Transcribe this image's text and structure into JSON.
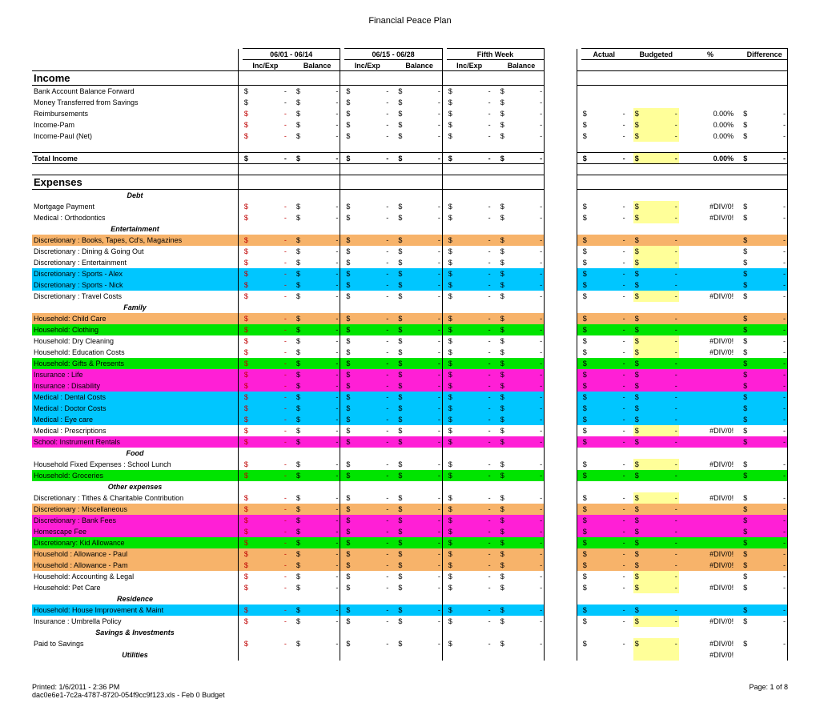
{
  "title": "Financial Peace Plan",
  "periods": [
    {
      "range": "06/01 - 06/14",
      "col1": "Inc/Exp",
      "col2": "Balance"
    },
    {
      "range": "06/15 - 06/28",
      "col1": "Inc/Exp",
      "col2": "Balance"
    },
    {
      "range": "Fifth Week",
      "col1": "Inc/Exp",
      "col2": "Balance"
    }
  ],
  "summary_headers": [
    "Actual",
    "Budgeted",
    "%",
    "Difference"
  ],
  "colors": {
    "orange": "#f7b36a",
    "cyan": "#00c6ff",
    "green": "#00e400",
    "magenta": "#ff1fd6",
    "yellow": "#ffff99",
    "white": "#ffffff"
  },
  "income": {
    "title": "Income",
    "rows": [
      {
        "label": "Bank Account Balance Forward",
        "bg": "white",
        "summary": false
      },
      {
        "label": "Money Transferred from Savings",
        "bg": "white",
        "summary": false
      },
      {
        "label": "Reimbursements",
        "bg": "white",
        "summary": true,
        "pct": "0.00%"
      },
      {
        "label": "Income-Pam",
        "bg": "white",
        "summary": true,
        "pct": "0.00%"
      },
      {
        "label": "Income-Paul (Net)",
        "bg": "white",
        "summary": true,
        "pct": "0.00%"
      }
    ],
    "total_label": "Total Income",
    "total_pct": "0.00%"
  },
  "expenses": {
    "title": "Expenses",
    "groups": [
      {
        "title": "Debt",
        "rows": [
          {
            "label": "Mortgage Payment",
            "bg": "white",
            "diverr": true
          },
          {
            "label": "Medical : Orthodontics",
            "bg": "white",
            "diverr": true
          }
        ]
      },
      {
        "title": "Entertainment",
        "rows": [
          {
            "label": "Discretionary : Books, Tapes, Cd's, Magazines",
            "bg": "orange"
          },
          {
            "label": "Discretionary : Dining & Going Out",
            "bg": "white"
          },
          {
            "label": "Discretionary : Entertainment",
            "bg": "white"
          },
          {
            "label": "Discretionary : Sports - Alex",
            "bg": "cyan"
          },
          {
            "label": "Discretionary : Sports - Nick",
            "bg": "cyan"
          },
          {
            "label": "Discretionary : Travel Costs",
            "bg": "white",
            "diverr": true
          }
        ]
      },
      {
        "title": "Family",
        "rows": [
          {
            "label": "Household: Child Care",
            "bg": "orange"
          },
          {
            "label": "Household: Clothing",
            "bg": "green"
          },
          {
            "label": "Household: Dry Cleaning",
            "bg": "white",
            "diverr": true
          },
          {
            "label": "Household: Education Costs",
            "bg": "white",
            "diverr": true
          },
          {
            "label": "Household: Gifts & Presents",
            "bg": "green"
          },
          {
            "label": "Insurance : Life",
            "bg": "magenta"
          },
          {
            "label": "Insurance : Disability",
            "bg": "magenta"
          },
          {
            "label": "Medical : Dental Costs",
            "bg": "cyan"
          },
          {
            "label": "Medical : Doctor Costs",
            "bg": "cyan"
          },
          {
            "label": "Medical : Eye care",
            "bg": "cyan"
          },
          {
            "label": "Medical : Prescriptions",
            "bg": "white",
            "diverr": true
          },
          {
            "label": "School: Instrument Rentals",
            "bg": "magenta"
          }
        ]
      },
      {
        "title": "Food",
        "rows": [
          {
            "label": "Household Fixed Expenses : School Lunch",
            "bg": "white",
            "diverr": true
          },
          {
            "label": "Household: Groceries",
            "bg": "green"
          }
        ]
      },
      {
        "title": "Other expenses",
        "rows": [
          {
            "label": "Discretionary : Tithes & Charitable Contribution",
            "bg": "white",
            "diverr": true
          },
          {
            "label": "Discretionary : Miscellaneous",
            "bg": "orange"
          },
          {
            "label": "Discretionary : Bank Fees",
            "bg": "magenta"
          },
          {
            "label": "Homescape Fee",
            "bg": "magenta"
          },
          {
            "label": "Discretionary: Kid Allowance",
            "bg": "green"
          },
          {
            "label": "Household : Allowance - Paul",
            "bg": "orange",
            "diverr": true
          },
          {
            "label": "Household : Allowance - Pam",
            "bg": "orange",
            "diverr": true
          },
          {
            "label": "Household: Accounting & Legal",
            "bg": "white"
          },
          {
            "label": "Household: Pet Care",
            "bg": "white",
            "diverr": true
          }
        ]
      },
      {
        "title": "Residence",
        "rows": [
          {
            "label": "Household: House Improvement & Maint",
            "bg": "cyan"
          },
          {
            "label": "Insurance : Umbrella Policy",
            "bg": "white",
            "diverr": true
          }
        ]
      },
      {
        "title": "Savings & Investments",
        "rows": [
          {
            "label": "Paid to Savings",
            "bg": "white",
            "diverr": true
          }
        ]
      },
      {
        "title": "Utilities",
        "rows": [],
        "trailing_diverr": true
      }
    ]
  },
  "footer": {
    "printed": "Printed: 1/6/2011 - 2:36 PM",
    "file": "dac0e6e1-7c2a-4787-8720-054f9cc9f123.xls - Feb 0 Budget",
    "page": "Page: 1 of 8"
  },
  "placeholders": {
    "dollar": "$",
    "dash": "-",
    "diverr": "#DIV/0!"
  }
}
